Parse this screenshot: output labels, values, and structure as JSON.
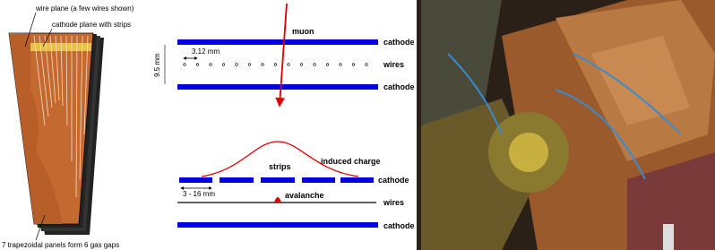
{
  "left_panel": {
    "wire_label": "wire plane (a few wires shown)",
    "cathode_label": "cathode plane with strips",
    "caption": "7 trapezoidal panels form 6 gas gaps"
  },
  "top_diagram": {
    "muon": "muon",
    "cathode_top": "cathode",
    "gap": "9.5 mm",
    "wire_spacing": "3.12 mm",
    "wires": "wires",
    "cathode_bottom": "cathode"
  },
  "bottom_diagram": {
    "induced_charge": "induced charge",
    "strips": "strips",
    "cathode_strips": "cathode",
    "strip_width": "3 - 16 mm",
    "avalanche": "avalanche",
    "wires": "wires",
    "cathode_bottom": "cathode"
  }
}
